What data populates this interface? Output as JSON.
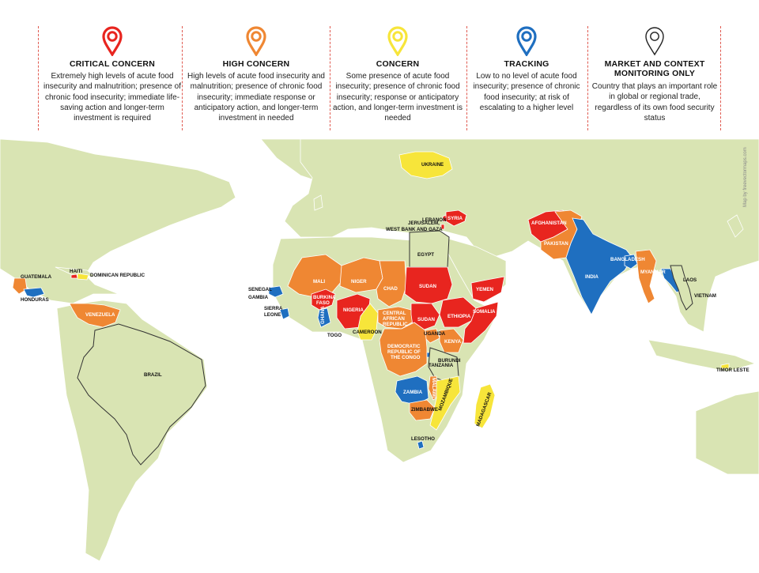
{
  "legend": [
    {
      "title": "CRITICAL CONCERN",
      "color": "#e8251f",
      "description": "Extremely high levels of acute food insecurity and malnutrition; presence of chronic food insecurity; immediate life-saving action and longer-term investment is required"
    },
    {
      "title": "HIGH CONCERN",
      "color": "#ef8733",
      "description": "High levels of acute food insecurity and malnutrition; presence of chronic food insecurity; immediate response or anticipatory action, and longer-term investment in needed"
    },
    {
      "title": "CONCERN",
      "color": "#f7e53a",
      "description": "Some presence of acute food insecurity; presence of chronic food insecurity; response or anticipatory action, and longer-term investment is needed"
    },
    {
      "title": "TRACKING",
      "color": "#1f6fc0",
      "description": "Low to no level of acute food insecurity; presence of chronic food insecurity; at risk of escalating to a higher level"
    },
    {
      "title": "MARKET AND CONTEXT MONITORING ONLY",
      "color": "#ffffff",
      "description": "Country that plays an important role in global or regional trade, regardless of its own food security status"
    }
  ],
  "map": {
    "credit": "Map by freevectormaps.com",
    "colors": {
      "land": "#d9e4b3",
      "border": "#ffffff",
      "market_border": "#333333"
    },
    "labels": {
      "guatemala": "GUATEMALA",
      "honduras": "HONDURAS",
      "haiti": "HAITI",
      "dominican_republic": "DOMINICAN REPUBLIC",
      "venezuela": "VENEZUELA",
      "brazil": "BRAZIL",
      "ukraine": "UKRAINE",
      "lebanon": "LEBANON",
      "syria": "SYRIA",
      "jerusalem": "JERUSALEM,",
      "wbg": "WEST BANK AND GAZA",
      "egypt": "EGYPT",
      "afghanistan": "AFGHANISTAN",
      "pakistan": "PAKISTAN",
      "bangladesh": "BANGLADESH",
      "india": "INDIA",
      "myanmar": "MYANMAR",
      "laos": "LAOS",
      "vietnam": "VIETNAM",
      "timor_leste": "TIMOR LESTE",
      "mali": "MALI",
      "niger": "NIGER",
      "chad": "CHAD",
      "sudan": "SUDAN",
      "yemen": "YEMEN",
      "senegal": "SENEGAL",
      "gambia": "GAMBIA",
      "sierra": "SIERRA",
      "leone": "LEONE",
      "burkina": "BURKINA",
      "faso": "FASO",
      "ghana": "GHANA",
      "togo": "TOGO",
      "nigeria": "NIGERIA",
      "cameroon": "CAMEROON",
      "car1": "CENTRAL",
      "car2": "AFRICAN",
      "car3": "REPUBLIC",
      "south_sudan": "SUDAN",
      "ethiopia": "ETHIOPIA",
      "somalia": "SOMALIA",
      "uganda": "UGANDA",
      "kenya": "KENYA",
      "drc1": "DEMOCRATIC",
      "drc2": "REPUBLIC OF",
      "drc3": "THE CONGO",
      "burundi": "BURUNDI",
      "tanzania": "TANZANIA",
      "zambia": "ZAMBIA",
      "malawi": "MALAWI",
      "zimbabwe": "ZIMBABWE",
      "mozambique": "MOZAMBIQUE",
      "madagascar": "MADAGASCAR",
      "lesotho": "LESOTHO"
    }
  }
}
